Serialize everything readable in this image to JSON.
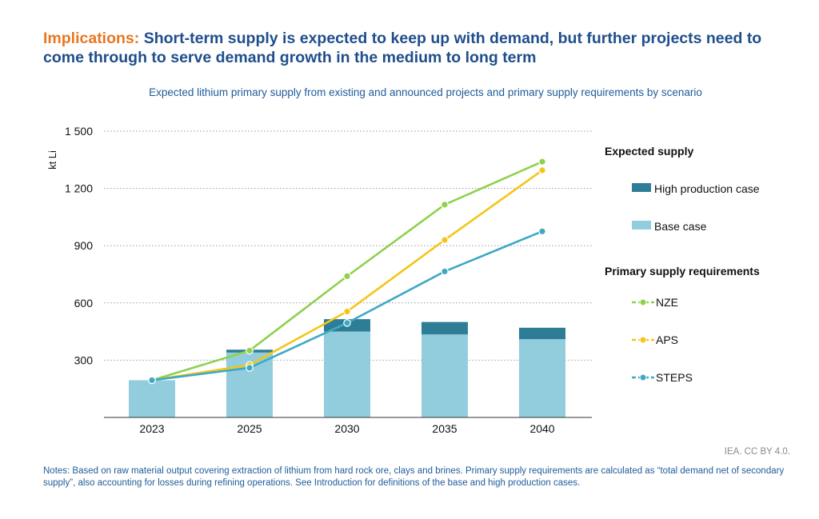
{
  "header": {
    "title_lead": "Implications:",
    "title_rest": "Short-term supply is expected to keep up with demand, but further projects need to come through to serve demand growth in the medium to long term"
  },
  "chart_data": {
    "type": "bar",
    "title": "Expected lithium primary supply from existing and announced projects and primary supply requirements by scenario",
    "ylabel": "kt Li",
    "xlabel": "",
    "ylim": [
      0,
      1500
    ],
    "yticks": [
      300,
      600,
      900,
      1200,
      1500
    ],
    "ytick_labels": [
      "300",
      "600",
      "900",
      "1 200",
      "1 500"
    ],
    "categories": [
      "2023",
      "2025",
      "2030",
      "2035",
      "2040"
    ],
    "grid": "horizontal dotted",
    "legend_position": "right",
    "bar_group_label": "Expected supply",
    "bars": [
      {
        "name": "Base case",
        "color": "#92cddd",
        "values": [
          195,
          340,
          450,
          435,
          410
        ]
      },
      {
        "name": "High production case",
        "color": "#2e7d96",
        "values": [
          0,
          15,
          65,
          65,
          60
        ]
      }
    ],
    "line_group_label": "Primary supply requirements",
    "lines": [
      {
        "name": "NZE",
        "color": "#8fd14f",
        "values": [
          195,
          350,
          740,
          1115,
          1340
        ]
      },
      {
        "name": "APS",
        "color": "#f5c518",
        "values": [
          195,
          275,
          555,
          930,
          1295
        ]
      },
      {
        "name": "STEPS",
        "color": "#3fa9c5",
        "values": [
          195,
          260,
          495,
          765,
          975
        ]
      }
    ]
  },
  "footer": {
    "source": "IEA. CC BY 4.0.",
    "notes": "Notes: Based on raw material output covering extraction of lithium from hard rock ore, clays and brines. Primary supply requirements are calculated as “total demand net of secondary supply”, also accounting for losses during refining operations. See Introduction for definitions of the base and high production cases."
  }
}
